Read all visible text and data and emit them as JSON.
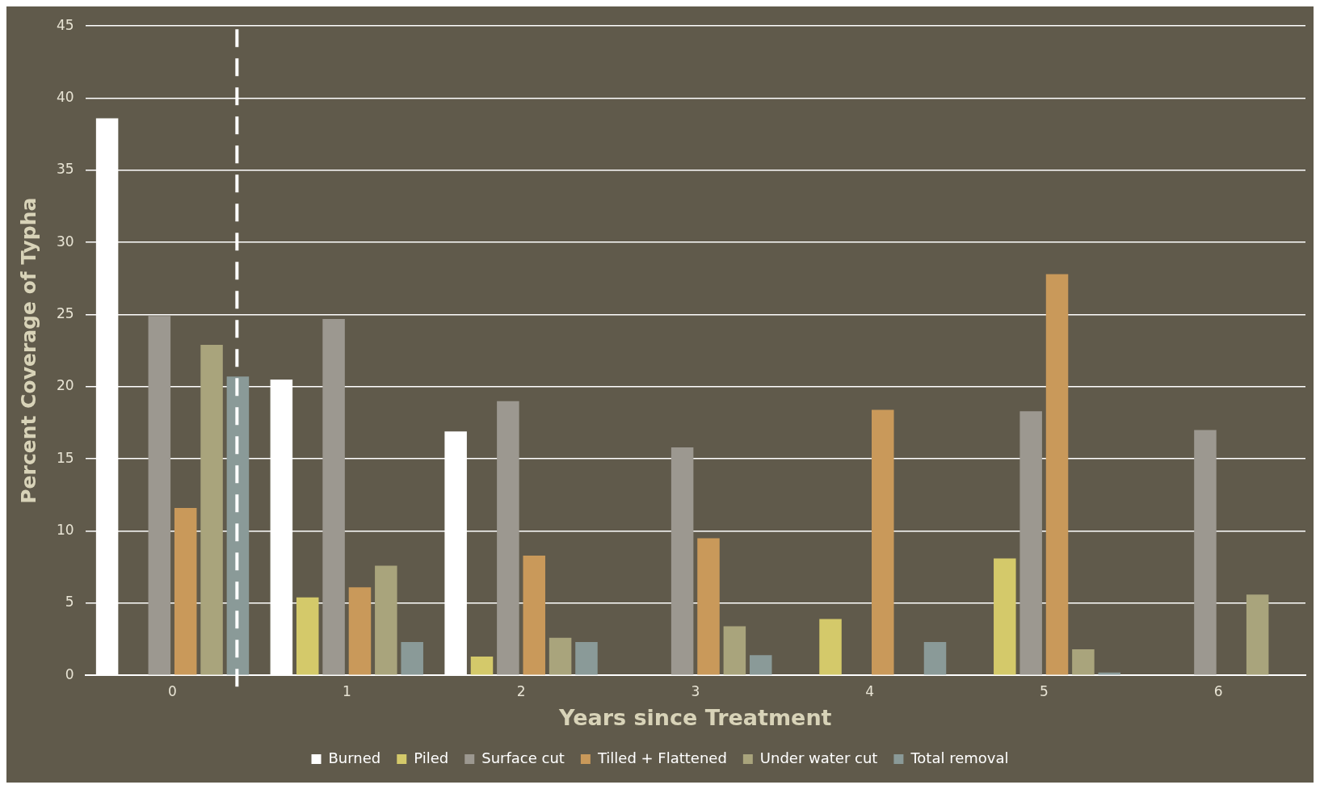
{
  "chart_data": {
    "type": "bar",
    "xlabel": "Years since Treatment",
    "ylabel": "Percent Coverage of Typha",
    "x": [
      0,
      1,
      2,
      3,
      4,
      5,
      6
    ],
    "series": [
      {
        "name": "Burned",
        "color": "#ffffff",
        "values": [
          38.6,
          20.5,
          16.9,
          null,
          null,
          null,
          null
        ]
      },
      {
        "name": "Piled",
        "color": "#d4c96a",
        "values": [
          null,
          5.4,
          1.3,
          null,
          3.9,
          8.1,
          null
        ]
      },
      {
        "name": "Surface cut",
        "color": "#9c9890",
        "values": [
          24.9,
          24.7,
          19.0,
          15.8,
          null,
          18.3,
          17.0
        ]
      },
      {
        "name": "Tilled + Flattened",
        "color": "#c9995a",
        "values": [
          11.6,
          6.1,
          8.3,
          9.5,
          18.4,
          27.8,
          null
        ]
      },
      {
        "name": "Under water cut",
        "color": "#a9a47c",
        "values": [
          22.9,
          7.6,
          2.6,
          3.4,
          null,
          1.8,
          5.6
        ]
      },
      {
        "name": "Total removal",
        "color": "#8a9a98",
        "values": [
          20.7,
          2.3,
          2.3,
          1.4,
          2.3,
          0.2,
          null
        ]
      }
    ],
    "xlim": [
      -0.5,
      6.5
    ],
    "xticks": [
      0,
      1,
      2,
      3,
      4,
      5,
      6
    ],
    "ylim": [
      0,
      45
    ],
    "yticks": [
      0,
      5,
      10,
      15,
      20,
      25,
      30,
      35,
      40,
      45
    ],
    "grid": "y",
    "legend": "bottom",
    "ref_lines": [
      {
        "axis": "x",
        "value": 0.37,
        "color": "#ffffff",
        "line_style": "dashed"
      }
    ]
  }
}
